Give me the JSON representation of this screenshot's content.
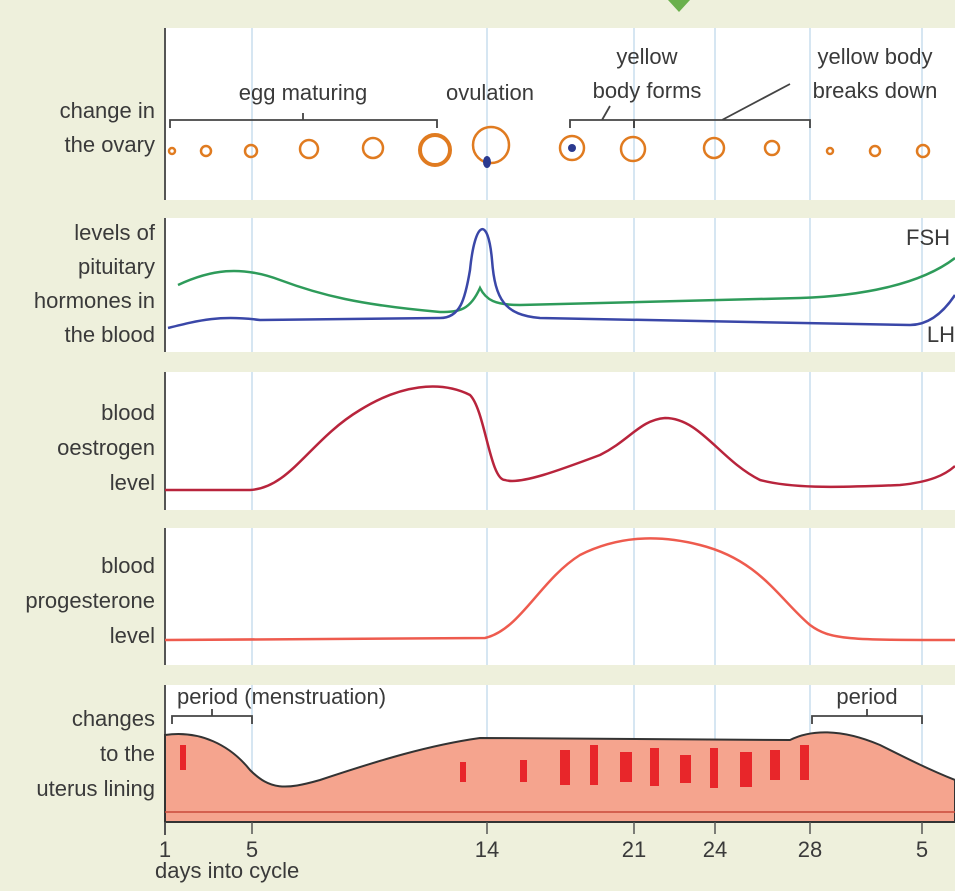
{
  "panels": [
    {
      "label": [
        "change in",
        "the ovary"
      ]
    },
    {
      "label": [
        "levels of",
        "pituitary",
        "hormones in",
        "the blood"
      ]
    },
    {
      "label": [
        "blood",
        "oestrogen",
        "level"
      ]
    },
    {
      "label": [
        "blood",
        "progesterone",
        "level"
      ]
    },
    {
      "label": [
        "changes",
        "to the",
        "uterus lining"
      ]
    }
  ],
  "ovary_annotations": {
    "egg_maturing": "egg maturing",
    "ovulation": "ovulation",
    "yellow_body_forms": [
      "yellow",
      "body forms"
    ],
    "yellow_body_breaks_down": [
      "yellow body",
      "breaks down"
    ]
  },
  "hormone_labels": {
    "fsh": "FSH",
    "lh": "LH"
  },
  "uterus_annotations": {
    "period_first": "period (menstruation)",
    "period_second": "period"
  },
  "x_axis": {
    "ticks": [
      "1",
      "5",
      "14",
      "21",
      "24",
      "28",
      "5"
    ],
    "label": "days into cycle"
  }
}
